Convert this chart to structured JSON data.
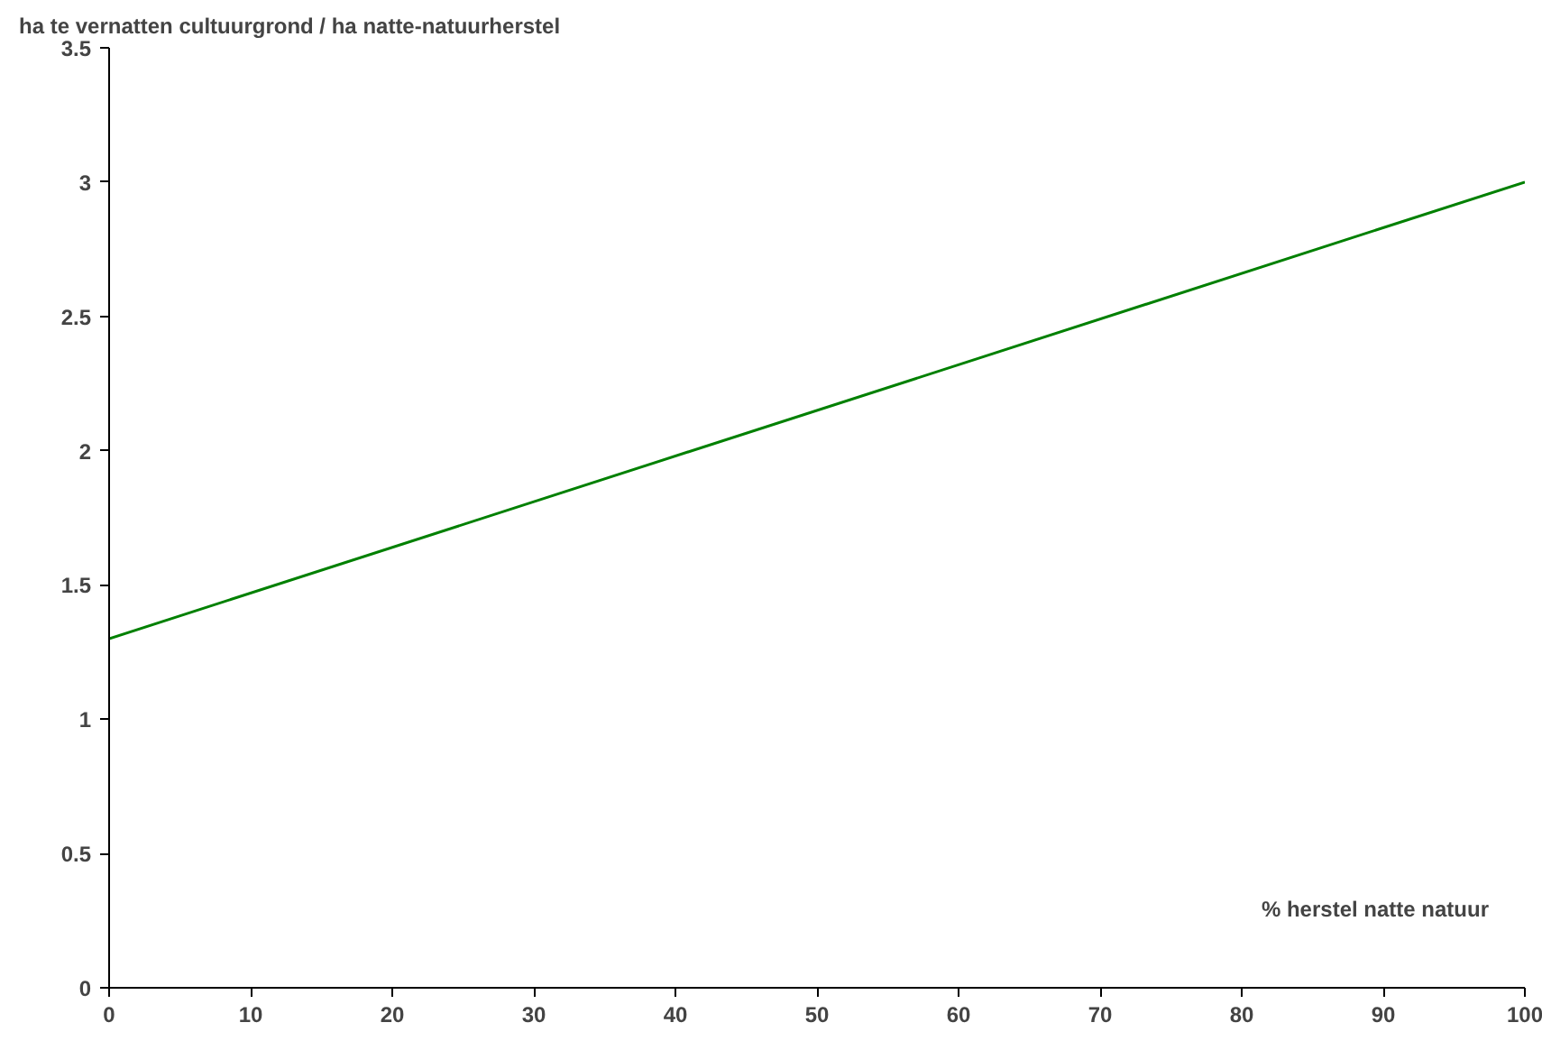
{
  "chart_data": {
    "type": "line",
    "ylabel": "ha te vernatten cultuurgrond / ha natte-natuurherstel",
    "xlabel": "% herstel natte natuur",
    "x": [
      0,
      100
    ],
    "series": [
      {
        "color": "#008000",
        "values": [
          1.3,
          3.0
        ]
      }
    ],
    "xlim": [
      0,
      100
    ],
    "xticks": [
      0,
      10,
      20,
      30,
      40,
      50,
      60,
      70,
      80,
      90,
      100
    ],
    "ylim": [
      0,
      3.5
    ],
    "yticks": [
      0,
      0.5,
      1,
      1.5,
      2,
      2.5,
      3,
      3.5
    ],
    "grid": false
  }
}
